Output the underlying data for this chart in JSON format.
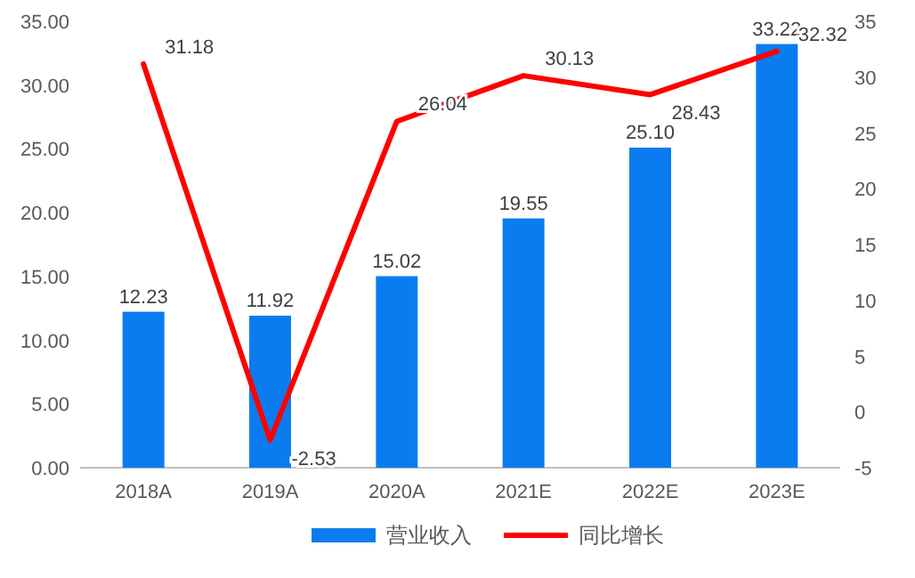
{
  "chart_data": {
    "type": "bar",
    "categories": [
      "2018A",
      "2019A",
      "2020A",
      "2021E",
      "2022E",
      "2023E"
    ],
    "series": [
      {
        "name": "营业收入",
        "color": "#0a7cf0",
        "values": [
          12.23,
          11.92,
          15.02,
          19.55,
          25.1,
          33.22
        ],
        "value_labels": [
          "12.23",
          "11.92",
          "15.02",
          "19.55",
          "25.10",
          "33.22"
        ]
      },
      {
        "name": "同比增长",
        "type": "line",
        "axis": "y2",
        "color": "#ff0000",
        "values": [
          31.18,
          -2.53,
          26.04,
          30.13,
          28.43,
          32.32
        ]
      }
    ],
    "ylim": [
      0,
      35
    ],
    "yticks": [
      {
        "value": 0,
        "label": "0.00"
      },
      {
        "value": 5,
        "label": "5.00"
      },
      {
        "value": 10,
        "label": "10.00"
      },
      {
        "value": 15,
        "label": "15.00"
      },
      {
        "value": 20,
        "label": "20.00"
      },
      {
        "value": 25,
        "label": "25.00"
      },
      {
        "value": 30,
        "label": "30.00"
      },
      {
        "value": 35,
        "label": "35.00"
      }
    ],
    "y2lim": [
      -5,
      35
    ],
    "y2ticks": [
      -5,
      0,
      5,
      10,
      15,
      20,
      25,
      30,
      35
    ],
    "data_labels": true,
    "legend": "bottom"
  }
}
